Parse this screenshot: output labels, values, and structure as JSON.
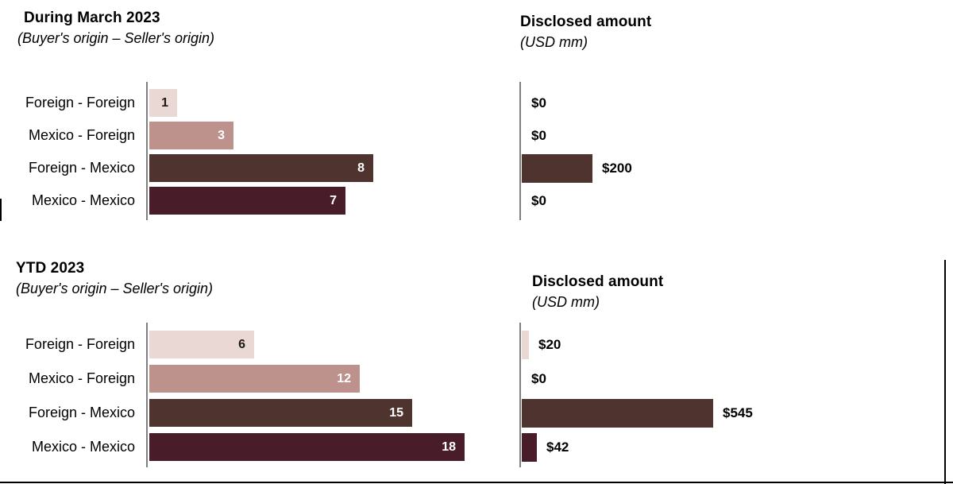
{
  "colors": {
    "axis": "#7f7f7f",
    "page_border": "#000000",
    "background": "#ffffff"
  },
  "palette": {
    "Foreign - Foreign": {
      "fill": "#e9d8d3",
      "text": "#1a1a1a"
    },
    "Mexico - Foreign": {
      "fill": "#bd918c",
      "text": "#ffffff"
    },
    "Foreign - Mexico": {
      "fill": "#4f332e",
      "text": "#ffffff"
    },
    "Mexico - Mexico": {
      "fill": "#481c28",
      "text": "#ffffff"
    }
  },
  "chart_data": [
    {
      "type": "bar",
      "orientation": "horizontal",
      "title": "During March 2023",
      "subtitle": "(Buyer's origin – Seller's origin)",
      "categories": [
        "Foreign - Foreign",
        "Mexico - Foreign",
        "Foreign - Mexico",
        "Mexico - Mexico"
      ],
      "values": [
        1,
        3,
        8,
        7
      ],
      "value_labels": [
        "1",
        "3",
        "8",
        "7"
      ],
      "xlim": [
        0,
        8.5
      ],
      "grid": false,
      "legend": false,
      "show_category_labels": true,
      "labels_inside": true
    },
    {
      "type": "bar",
      "orientation": "horizontal",
      "title": "Disclosed amount",
      "subtitle": "(USD mm)",
      "categories": [
        "Foreign - Foreign",
        "Mexico - Foreign",
        "Foreign - Mexico",
        "Mexico - Mexico"
      ],
      "values": [
        0,
        0,
        200,
        0
      ],
      "value_labels": [
        "$0",
        "$0",
        "$200",
        "$0"
      ],
      "xlim": [
        0,
        600
      ],
      "grid": false,
      "legend": false,
      "show_category_labels": false,
      "labels_inside": false
    },
    {
      "type": "bar",
      "orientation": "horizontal",
      "title": "YTD 2023",
      "subtitle": "(Buyer's origin – Seller's origin)",
      "categories": [
        "Foreign - Foreign",
        "Mexico - Foreign",
        "Foreign - Mexico",
        "Mexico - Mexico"
      ],
      "values": [
        6,
        12,
        15,
        18
      ],
      "value_labels": [
        "6",
        "12",
        "15",
        "18"
      ],
      "xlim": [
        0,
        18.5
      ],
      "grid": false,
      "legend": false,
      "show_category_labels": true,
      "labels_inside": true
    },
    {
      "type": "bar",
      "orientation": "horizontal",
      "title": "Disclosed amount",
      "subtitle": "(USD mm)",
      "categories": [
        "Foreign - Foreign",
        "Mexico - Foreign",
        "Foreign - Mexico",
        "Mexico - Mexico"
      ],
      "values": [
        20,
        0,
        545,
        42
      ],
      "value_labels": [
        "$20",
        "$0",
        "$545",
        "$42"
      ],
      "xlim": [
        0,
        600
      ],
      "grid": false,
      "legend": false,
      "show_category_labels": false,
      "labels_inside": false
    }
  ]
}
